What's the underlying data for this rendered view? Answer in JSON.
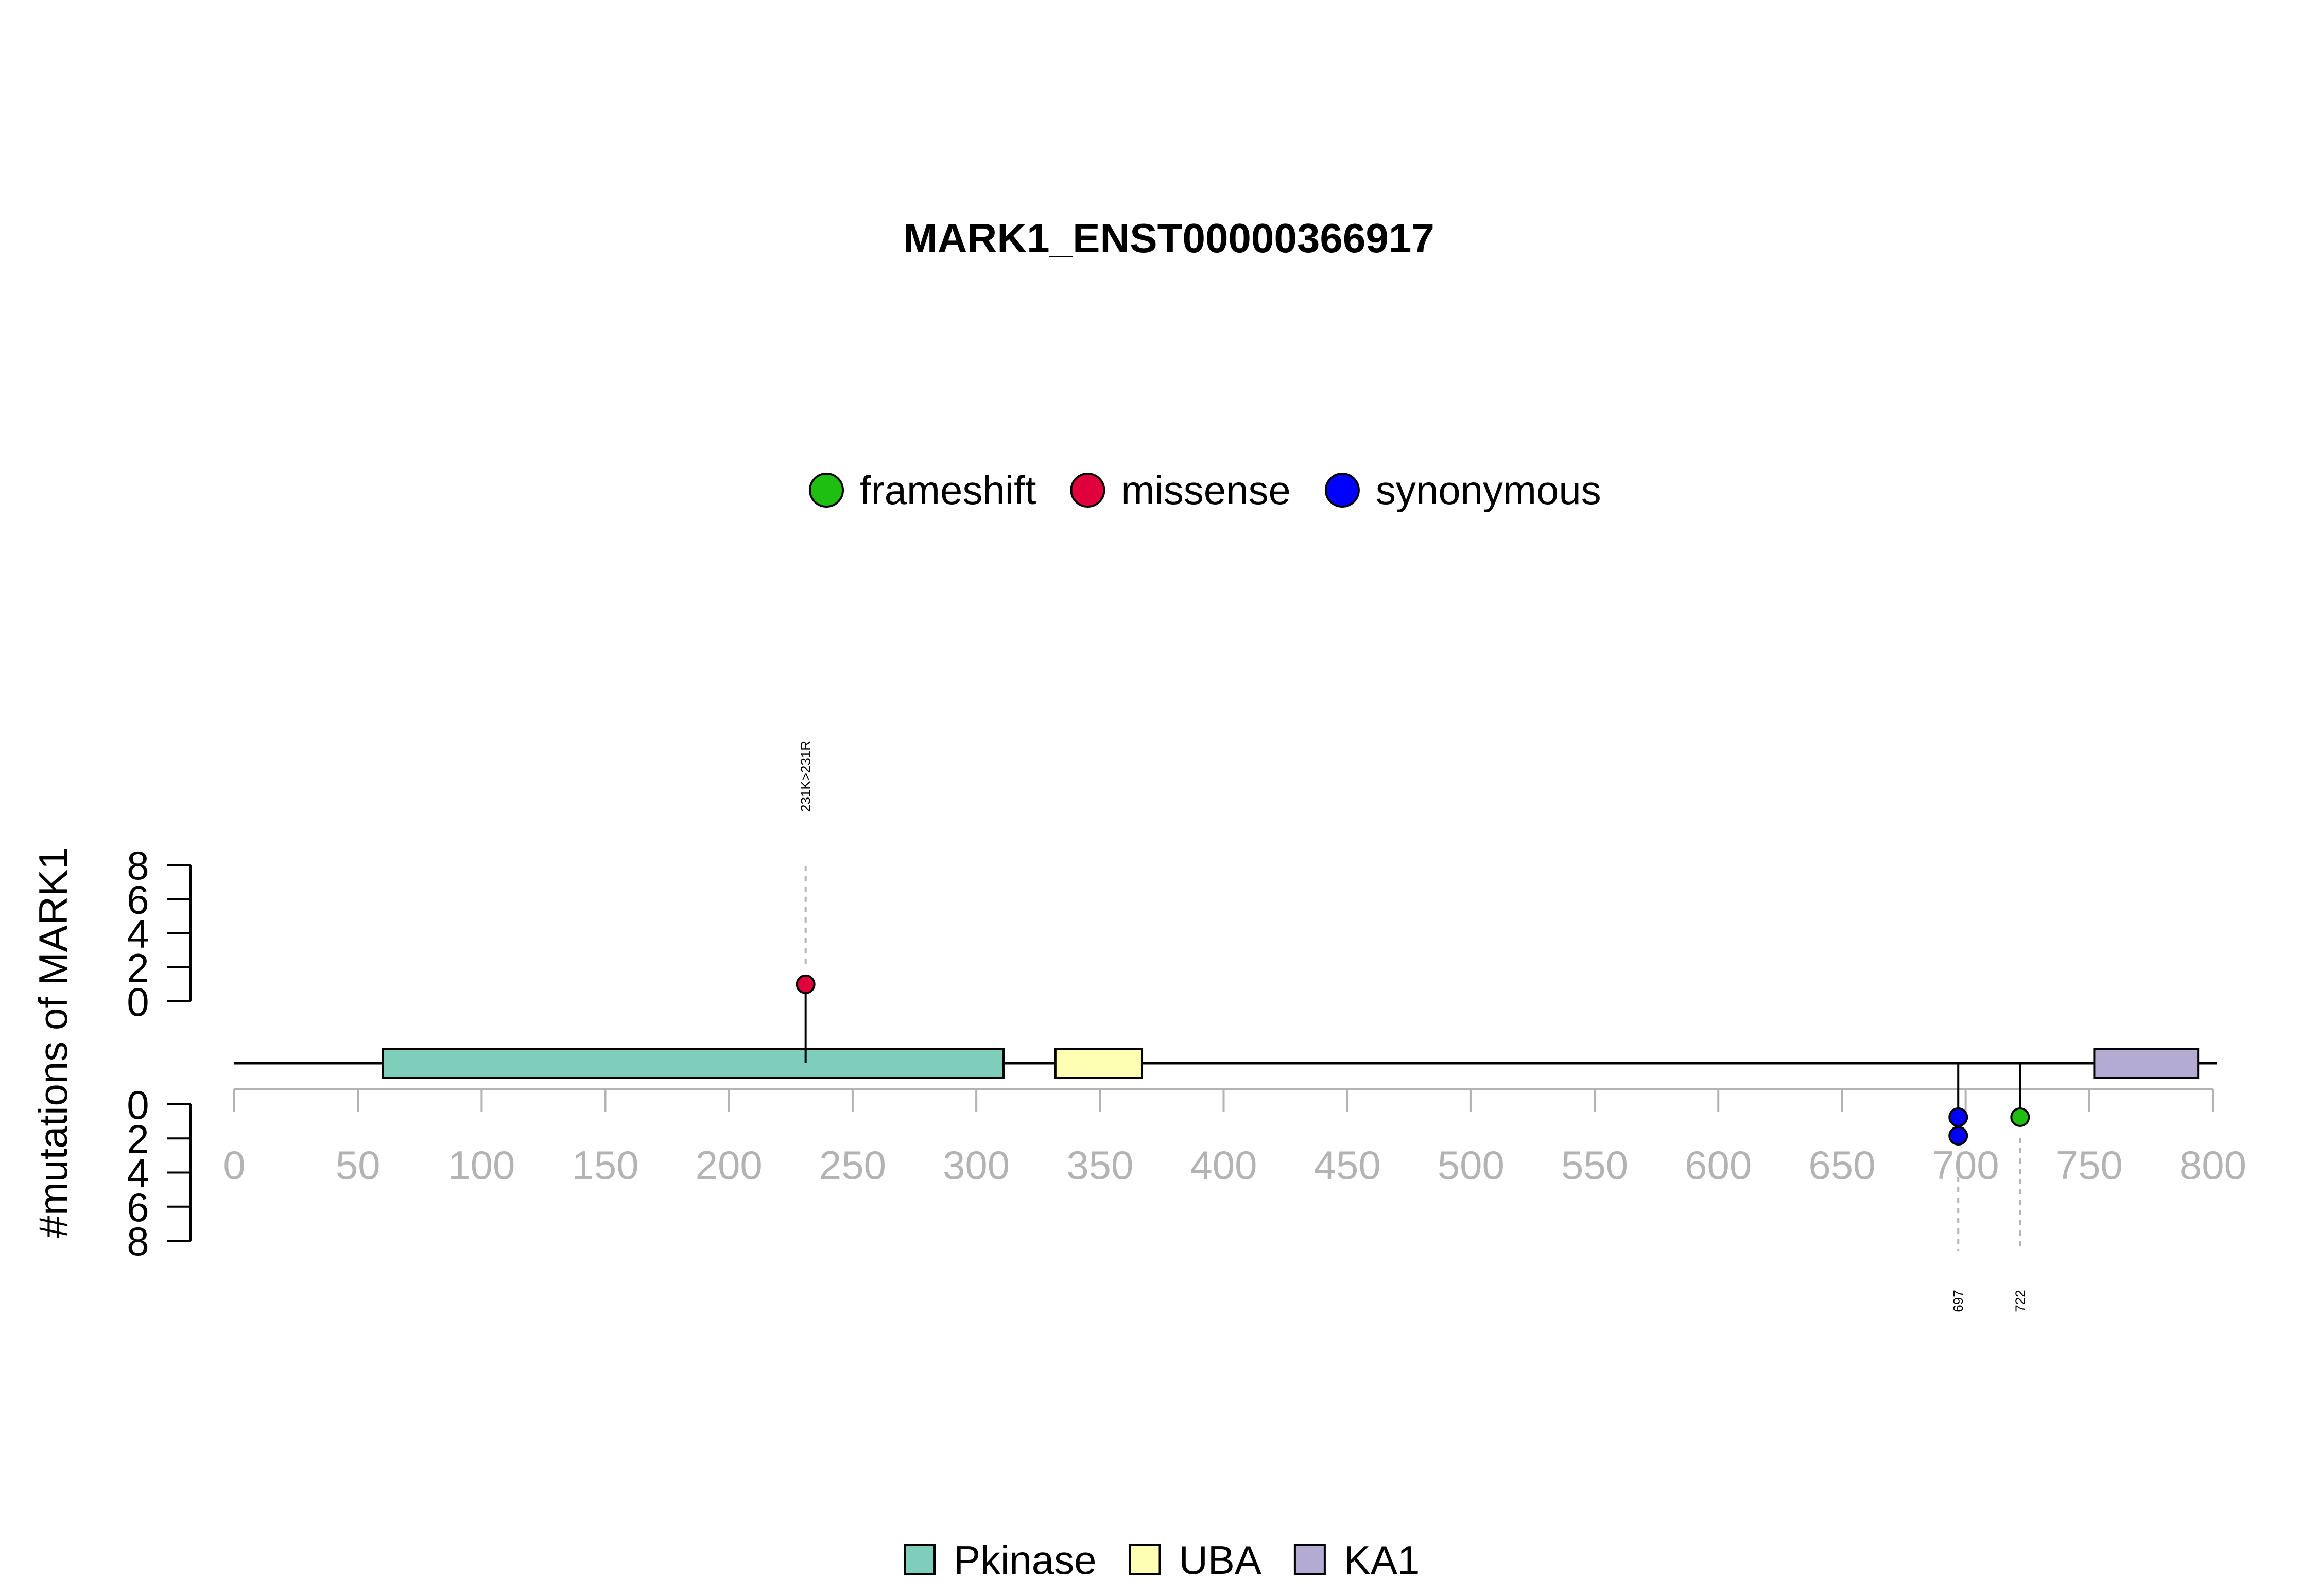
{
  "chart_data": {
    "type": "lollipop",
    "title": "MARK1_ENST00000366917",
    "ylabel": "#mutations of MARK1",
    "protein_length": 795,
    "x_ticks": [
      "0",
      "50",
      "100",
      "150",
      "200",
      "250",
      "300",
      "350",
      "400",
      "450",
      "500",
      "550",
      "600",
      "650",
      "700",
      "750",
      "800"
    ],
    "y_ticks": [
      "0",
      "2",
      "4",
      "6",
      "8"
    ],
    "ylim": [
      0,
      8
    ],
    "mutation_legend": [
      {
        "name": "frameshift",
        "color": "#1fbf12"
      },
      {
        "name": "missense",
        "color": "#e0003c"
      },
      {
        "name": "synonymous",
        "color": "#0000ff"
      }
    ],
    "domain_legend": [
      {
        "name": "Pkinase",
        "color": "#7fcdbb"
      },
      {
        "name": "UBA",
        "color": "#ffffb3"
      },
      {
        "name": "KA1",
        "color": "#b3abd3"
      }
    ],
    "domains": [
      {
        "name": "Pkinase",
        "start": 60,
        "end": 311,
        "color": "#7fcdbb"
      },
      {
        "name": "UBA",
        "start": 332,
        "end": 367,
        "color": "#ffffb3"
      },
      {
        "name": "KA1",
        "start": 752,
        "end": 794,
        "color": "#b3abd3"
      }
    ],
    "mutations": [
      {
        "position": 231,
        "label": "231K>231R",
        "type": "missense",
        "side": "up",
        "count": 1,
        "color": "#e0003c"
      },
      {
        "position": 697,
        "label": "697",
        "type": "synonymous",
        "side": "down",
        "count": 2,
        "color": "#0000ff"
      },
      {
        "position": 722,
        "label": "722",
        "type": "frameshift",
        "side": "down",
        "count": 1,
        "color": "#1fbf12"
      }
    ]
  }
}
